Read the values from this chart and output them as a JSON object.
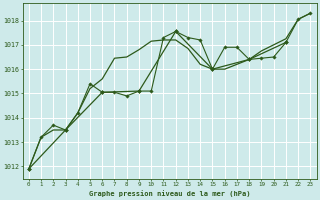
{
  "background_color": "#ceeaea",
  "grid_color": "#b0d4d4",
  "line_color": "#2d5a1b",
  "title": "Graphe pression niveau de la mer (hPa)",
  "xlim": [
    -0.5,
    23.5
  ],
  "ylim": [
    1011.5,
    1018.7
  ],
  "yticks": [
    1012,
    1013,
    1014,
    1015,
    1016,
    1017,
    1018
  ],
  "xticks": [
    0,
    1,
    2,
    3,
    4,
    5,
    6,
    7,
    8,
    9,
    10,
    11,
    12,
    13,
    14,
    15,
    16,
    17,
    18,
    19,
    20,
    21,
    22,
    23
  ],
  "series1_x": [
    0,
    1,
    2,
    3,
    4,
    5,
    6,
    7,
    8,
    9,
    10,
    11,
    12,
    13,
    14,
    15,
    16,
    17,
    18,
    19,
    20,
    21,
    22,
    23
  ],
  "series1_y": [
    1011.9,
    1013.2,
    1013.7,
    1013.5,
    1014.2,
    1015.4,
    1015.05,
    1015.05,
    1014.9,
    1015.1,
    1015.1,
    1017.3,
    1017.55,
    1017.3,
    1017.2,
    1016.0,
    1016.9,
    1016.9,
    1016.4,
    1016.45,
    1016.5,
    1017.1,
    1018.05,
    1018.3
  ],
  "series2_x": [
    0,
    1,
    2,
    3,
    4,
    5,
    6,
    7,
    8,
    9,
    10,
    11,
    12,
    13,
    14,
    15,
    16,
    17,
    18,
    19,
    20,
    21,
    22,
    23
  ],
  "series2_y": [
    1011.9,
    1013.2,
    1013.5,
    1013.5,
    1014.2,
    1015.2,
    1015.6,
    1016.45,
    1016.5,
    1016.8,
    1017.15,
    1017.2,
    1017.2,
    1016.85,
    1016.2,
    1016.0,
    1016.0,
    1016.2,
    1016.4,
    1016.75,
    1017.0,
    1017.25,
    1018.05,
    1018.3
  ],
  "series3_x": [
    0,
    3,
    6,
    9,
    12,
    15,
    18,
    21
  ],
  "series3_y": [
    1011.9,
    1013.5,
    1015.05,
    1015.1,
    1017.55,
    1016.0,
    1016.4,
    1017.1
  ]
}
